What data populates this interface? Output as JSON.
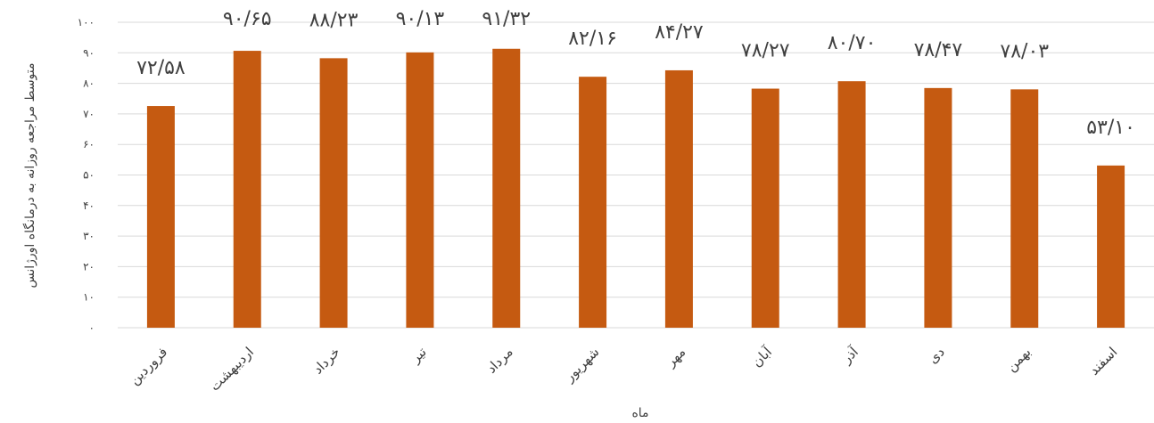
{
  "chart_data": {
    "type": "bar",
    "categories": [
      "فروردین",
      "اردیبهشت",
      "خرداد",
      "تیر",
      "مرداد",
      "شهریور",
      "مهر",
      "آبان",
      "آذر",
      "دی",
      "بهمن",
      "اسفند"
    ],
    "values": [
      72.58,
      90.65,
      88.23,
      90.13,
      91.32,
      82.16,
      84.27,
      78.27,
      80.7,
      78.47,
      78.03,
      53.1
    ],
    "data_labels": [
      "۷۲/۵۸",
      "۹۰/۶۵",
      "۸۸/۲۳",
      "۹۰/۱۳",
      "۹۱/۳۲",
      "۸۲/۱۶",
      "۸۴/۲۷",
      "۷۸/۲۷",
      "۸۰/۷۰",
      "۷۸/۴۷",
      "۷۸/۰۳",
      "۵۳/۱۰"
    ],
    "xlabel": "ماه",
    "ylabel": "متوسط مراجعه روزانه به درمانگاه اورژانس",
    "ylim": [
      0,
      100
    ],
    "yticks": [
      0,
      10,
      20,
      30,
      40,
      50,
      60,
      70,
      80,
      90,
      100
    ],
    "ytick_labels": [
      "۰",
      "۱۰",
      "۲۰",
      "۳۰",
      "۴۰",
      "۵۰",
      "۶۰",
      "۷۰",
      "۸۰",
      "۹۰",
      "۱۰۰"
    ],
    "grid": true,
    "legend": false,
    "bar_color": "#c55a11",
    "grid_color": "#d9d9d9"
  }
}
